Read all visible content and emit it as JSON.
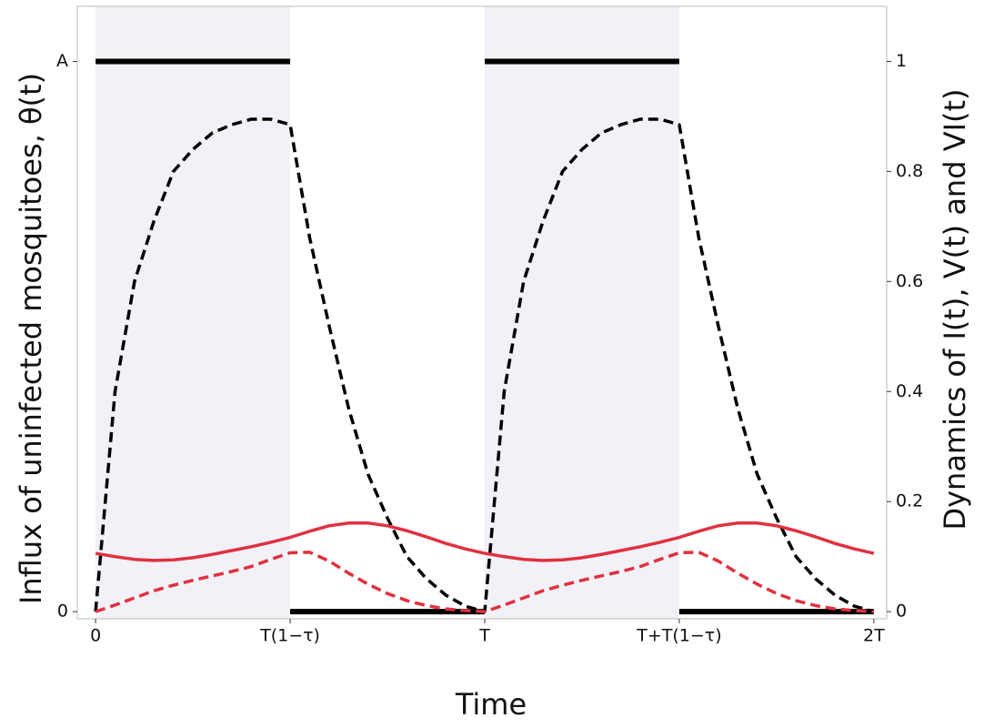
{
  "chart_data": {
    "type": "line",
    "xlabel": "Time",
    "ylabel": "Influx of uninfected mosquitoes, θ(t)",
    "y2label": "Dynamics of I(t), V(t) and VI(t)",
    "x": [
      0,
      0.05,
      0.1,
      0.15,
      0.2,
      0.25,
      0.3,
      0.35,
      0.4,
      0.45,
      0.5,
      0.55,
      0.6,
      0.65,
      0.7,
      0.75,
      0.8,
      0.85,
      0.9,
      0.95,
      1,
      1.05,
      1.1,
      1.15,
      1.2,
      1.25,
      1.3,
      1.35,
      1.4,
      1.45,
      1.5,
      1.55,
      1.6,
      1.65,
      1.7,
      1.75,
      1.8,
      1.85,
      1.9,
      1.95,
      2
    ],
    "xlim": [
      -0.047,
      2.033
    ],
    "xticks": [
      0,
      {
        "value": 0.5,
        "label": "T(1−τ)"
      },
      {
        "value": 1,
        "label": "T"
      },
      {
        "value": 1.5,
        "label": "T+T(1−τ)"
      },
      {
        "value": 2,
        "label": "2T"
      }
    ],
    "ylim": [
      -0.013,
      1.1
    ],
    "yticks": [
      0,
      {
        "value": 1,
        "label": "A"
      }
    ],
    "y2lim": [
      -0.013,
      1.1
    ],
    "y2ticks": [
      0,
      0.2,
      0.4,
      0.6,
      0.8,
      1
    ],
    "shade_color": "#f1f1f7",
    "series": [
      {
        "color": "#000000",
        "dash": false,
        "width": 6,
        "axis": "y",
        "shade": true,
        "x": [
          0,
          0.5,
          0.5,
          0.5,
          1,
          1,
          1,
          1.5,
          1.5,
          1.5,
          2
        ],
        "values": [
          1,
          1,
          null,
          0,
          0,
          null,
          1,
          1,
          null,
          0,
          0
        ]
      },
      {
        "color": "#000000",
        "dash": true,
        "width": 3.5,
        "axis": "y2",
        "values": [
          0,
          0.4,
          0.6,
          0.71,
          0.8,
          0.84,
          0.87,
          0.885,
          0.895,
          0.895,
          0.885,
          0.68,
          0.52,
          0.37,
          0.25,
          0.17,
          0.1,
          0.06,
          0.03,
          0.01,
          0,
          0.4,
          0.6,
          0.71,
          0.8,
          0.84,
          0.87,
          0.885,
          0.895,
          0.895,
          0.885,
          0.68,
          0.52,
          0.37,
          0.25,
          0.17,
          0.1,
          0.06,
          0.03,
          0.01,
          0
        ]
      },
      {
        "color": "#e0313f",
        "dash": false,
        "width": 3.5,
        "axis": "y2",
        "values": [
          0.106,
          0.1,
          0.095,
          0.093,
          0.094,
          0.098,
          0.104,
          0.111,
          0.118,
          0.126,
          0.135,
          0.146,
          0.156,
          0.161,
          0.161,
          0.156,
          0.147,
          0.136,
          0.124,
          0.114,
          0.106,
          0.1,
          0.095,
          0.093,
          0.094,
          0.098,
          0.104,
          0.111,
          0.118,
          0.126,
          0.135,
          0.146,
          0.156,
          0.161,
          0.161,
          0.156,
          0.147,
          0.136,
          0.124,
          0.114,
          0.106
        ]
      },
      {
        "color": "#e0313f",
        "dash": true,
        "width": 3.5,
        "axis": "y2",
        "values": [
          0,
          0.012,
          0.025,
          0.038,
          0.048,
          0.057,
          0.065,
          0.073,
          0.082,
          0.095,
          0.107,
          0.108,
          0.092,
          0.07,
          0.05,
          0.033,
          0.02,
          0.011,
          0.005,
          0.002,
          0,
          0.012,
          0.025,
          0.038,
          0.048,
          0.057,
          0.065,
          0.073,
          0.082,
          0.095,
          0.107,
          0.108,
          0.092,
          0.07,
          0.05,
          0.033,
          0.02,
          0.011,
          0.005,
          0.002,
          0
        ]
      }
    ]
  }
}
